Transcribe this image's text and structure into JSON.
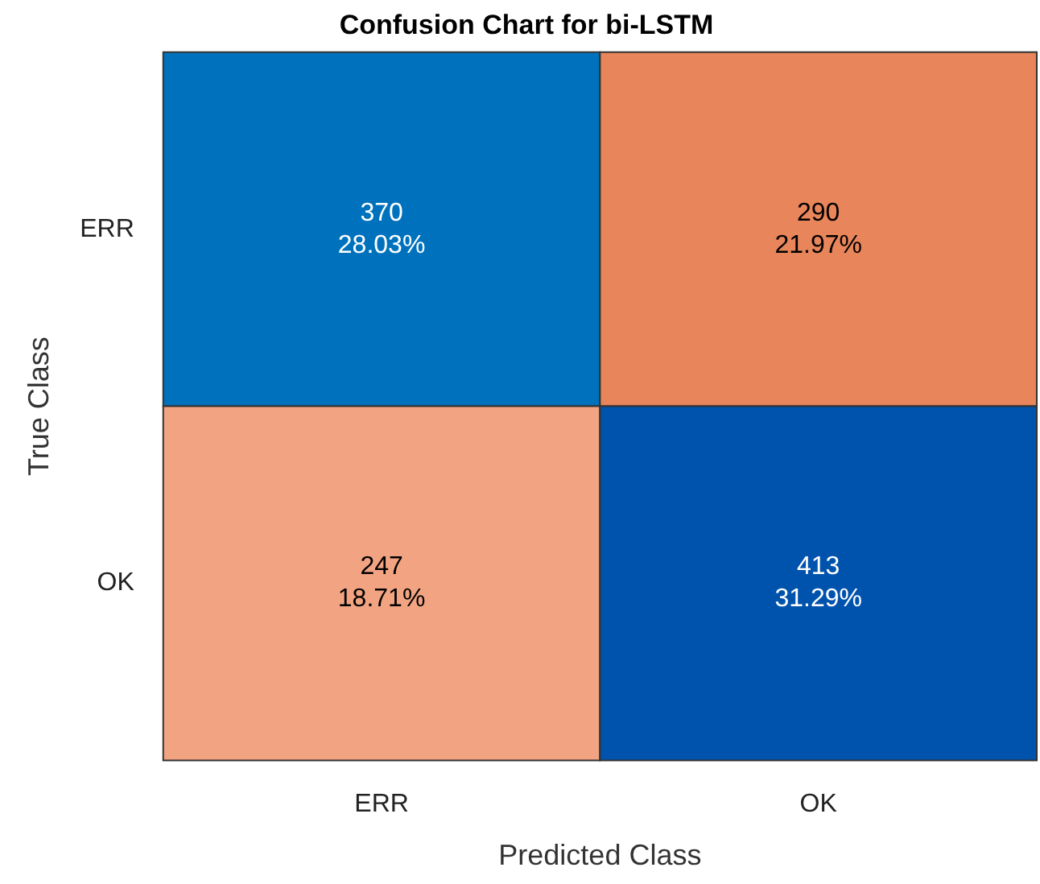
{
  "chart_data": {
    "type": "heatmap",
    "title": "Confusion Chart for bi-LSTM",
    "xlabel": "Predicted Class",
    "ylabel": "True Class",
    "categories": [
      "ERR",
      "OK"
    ],
    "y_categories": [
      "ERR",
      "OK"
    ],
    "cells": [
      [
        370,
        290
      ],
      [
        247,
        413
      ]
    ],
    "data_labels": true,
    "annotations": [
      "28.03%",
      "21.97%",
      "18.71%",
      "31.29%"
    ]
  }
}
